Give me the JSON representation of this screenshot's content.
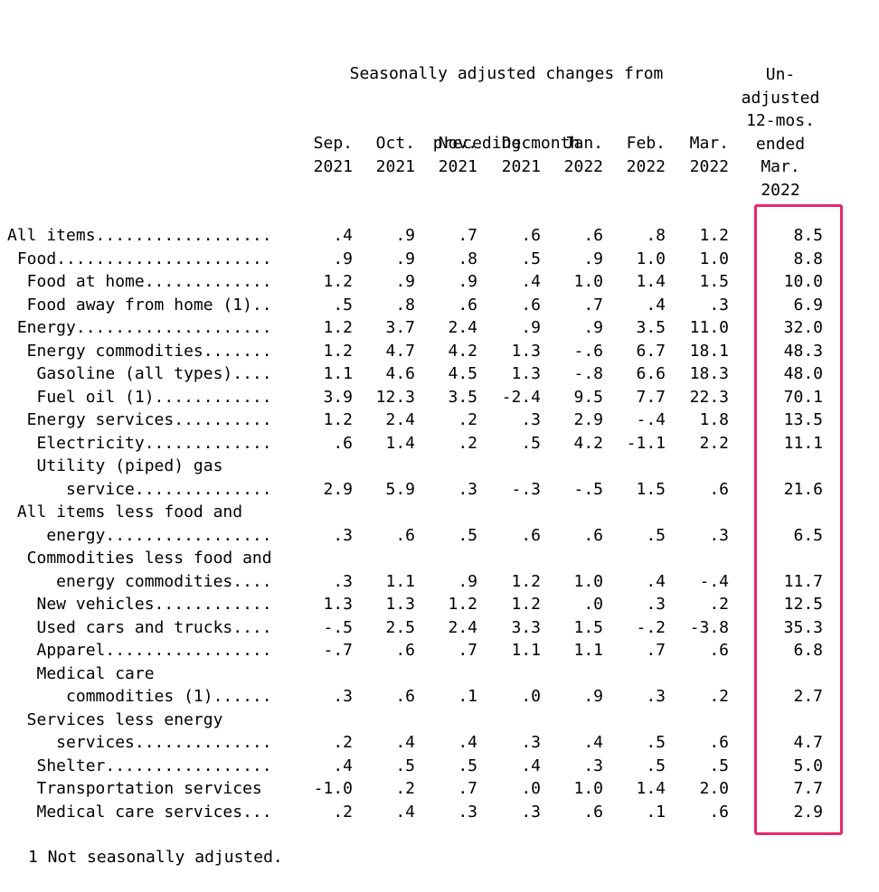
{
  "title_lines": [
    "Seasonally adjusted changes from",
    "preceding month"
  ],
  "columns": [
    {
      "line1": "Sep.",
      "line2": "2021"
    },
    {
      "line1": "Oct.",
      "line2": "2021"
    },
    {
      "line1": "Nov.",
      "line2": "2021"
    },
    {
      "line1": "Dec.",
      "line2": "2021"
    },
    {
      "line1": "Jan.",
      "line2": "2022"
    },
    {
      "line1": "Feb.",
      "line2": "2022"
    },
    {
      "line1": "Mar.",
      "line2": "2022"
    }
  ],
  "unadjusted_header": [
    "Un-",
    "adjusted",
    "12-mos.",
    "ended",
    "Mar.",
    "2022"
  ],
  "rows": [
    {
      "label": "All items..................",
      "values": [
        ".4",
        ".9",
        ".7",
        ".6",
        ".6",
        ".8",
        "1.2",
        "8.5"
      ]
    },
    {
      "label": " Food......................",
      "values": [
        ".9",
        ".9",
        ".8",
        ".5",
        ".9",
        "1.0",
        "1.0",
        "8.8"
      ]
    },
    {
      "label": "  Food at home.............",
      "values": [
        "1.2",
        ".9",
        ".9",
        ".4",
        "1.0",
        "1.4",
        "1.5",
        "10.0"
      ]
    },
    {
      "label": "  Food away from home (1)..",
      "values": [
        ".5",
        ".8",
        ".6",
        ".6",
        ".7",
        ".4",
        ".3",
        "6.9"
      ]
    },
    {
      "label": " Energy....................",
      "values": [
        "1.2",
        "3.7",
        "2.4",
        ".9",
        ".9",
        "3.5",
        "11.0",
        "32.0"
      ]
    },
    {
      "label": "  Energy commodities.......",
      "values": [
        "1.2",
        "4.7",
        "4.2",
        "1.3",
        "-.6",
        "6.7",
        "18.1",
        "48.3"
      ]
    },
    {
      "label": "   Gasoline (all types)....",
      "values": [
        "1.1",
        "4.6",
        "4.5",
        "1.3",
        "-.8",
        "6.6",
        "18.3",
        "48.0"
      ]
    },
    {
      "label": "   Fuel oil (1)............",
      "values": [
        "3.9",
        "12.3",
        "3.5",
        "-2.4",
        "9.5",
        "7.7",
        "22.3",
        "70.1"
      ]
    },
    {
      "label": "  Energy services..........",
      "values": [
        "1.2",
        "2.4",
        ".2",
        ".3",
        "2.9",
        "-.4",
        "1.8",
        "13.5"
      ]
    },
    {
      "label": "   Electricity.............",
      "values": [
        ".6",
        "1.4",
        ".2",
        ".5",
        "4.2",
        "-1.1",
        "2.2",
        "11.1"
      ]
    },
    {
      "label": "   Utility (piped) gas",
      "values": []
    },
    {
      "label": "      service..............",
      "values": [
        "2.9",
        "5.9",
        ".3",
        "-.3",
        "-.5",
        "1.5",
        ".6",
        "21.6"
      ]
    },
    {
      "label": " All items less food and",
      "values": []
    },
    {
      "label": "    energy.................",
      "values": [
        ".3",
        ".6",
        ".5",
        ".6",
        ".6",
        ".5",
        ".3",
        "6.5"
      ]
    },
    {
      "label": "  Commodities less food and",
      "values": []
    },
    {
      "label": "     energy commodities....",
      "values": [
        ".3",
        "1.1",
        ".9",
        "1.2",
        "1.0",
        ".4",
        "-.4",
        "11.7"
      ]
    },
    {
      "label": "   New vehicles............",
      "values": [
        "1.3",
        "1.3",
        "1.2",
        "1.2",
        ".0",
        ".3",
        ".2",
        "12.5"
      ]
    },
    {
      "label": "   Used cars and trucks....",
      "values": [
        "-.5",
        "2.5",
        "2.4",
        "3.3",
        "1.5",
        "-.2",
        "-3.8",
        "35.3"
      ]
    },
    {
      "label": "   Apparel.................",
      "values": [
        "-.7",
        ".6",
        ".7",
        "1.1",
        "1.1",
        ".7",
        ".6",
        "6.8"
      ]
    },
    {
      "label": "   Medical care",
      "values": []
    },
    {
      "label": "      commodities (1)......",
      "values": [
        ".3",
        ".6",
        ".1",
        ".0",
        ".9",
        ".3",
        ".2",
        "2.7"
      ]
    },
    {
      "label": "  Services less energy",
      "values": []
    },
    {
      "label": "     services..............",
      "values": [
        ".2",
        ".4",
        ".4",
        ".3",
        ".4",
        ".5",
        ".6",
        "4.7"
      ]
    },
    {
      "label": "   Shelter.................",
      "values": [
        ".4",
        ".5",
        ".5",
        ".4",
        ".3",
        ".5",
        ".5",
        "5.0"
      ]
    },
    {
      "label": "   Transportation services ",
      "values": [
        "-1.0",
        ".2",
        ".7",
        ".0",
        "1.0",
        "1.4",
        "2.0",
        "7.7"
      ]
    },
    {
      "label": "   Medical care services...",
      "values": [
        ".2",
        ".4",
        ".3",
        ".3",
        ".6",
        ".1",
        ".6",
        "2.9"
      ]
    }
  ],
  "footnote": "1 Not seasonally adjusted.",
  "highlight_color": "#e8266b"
}
